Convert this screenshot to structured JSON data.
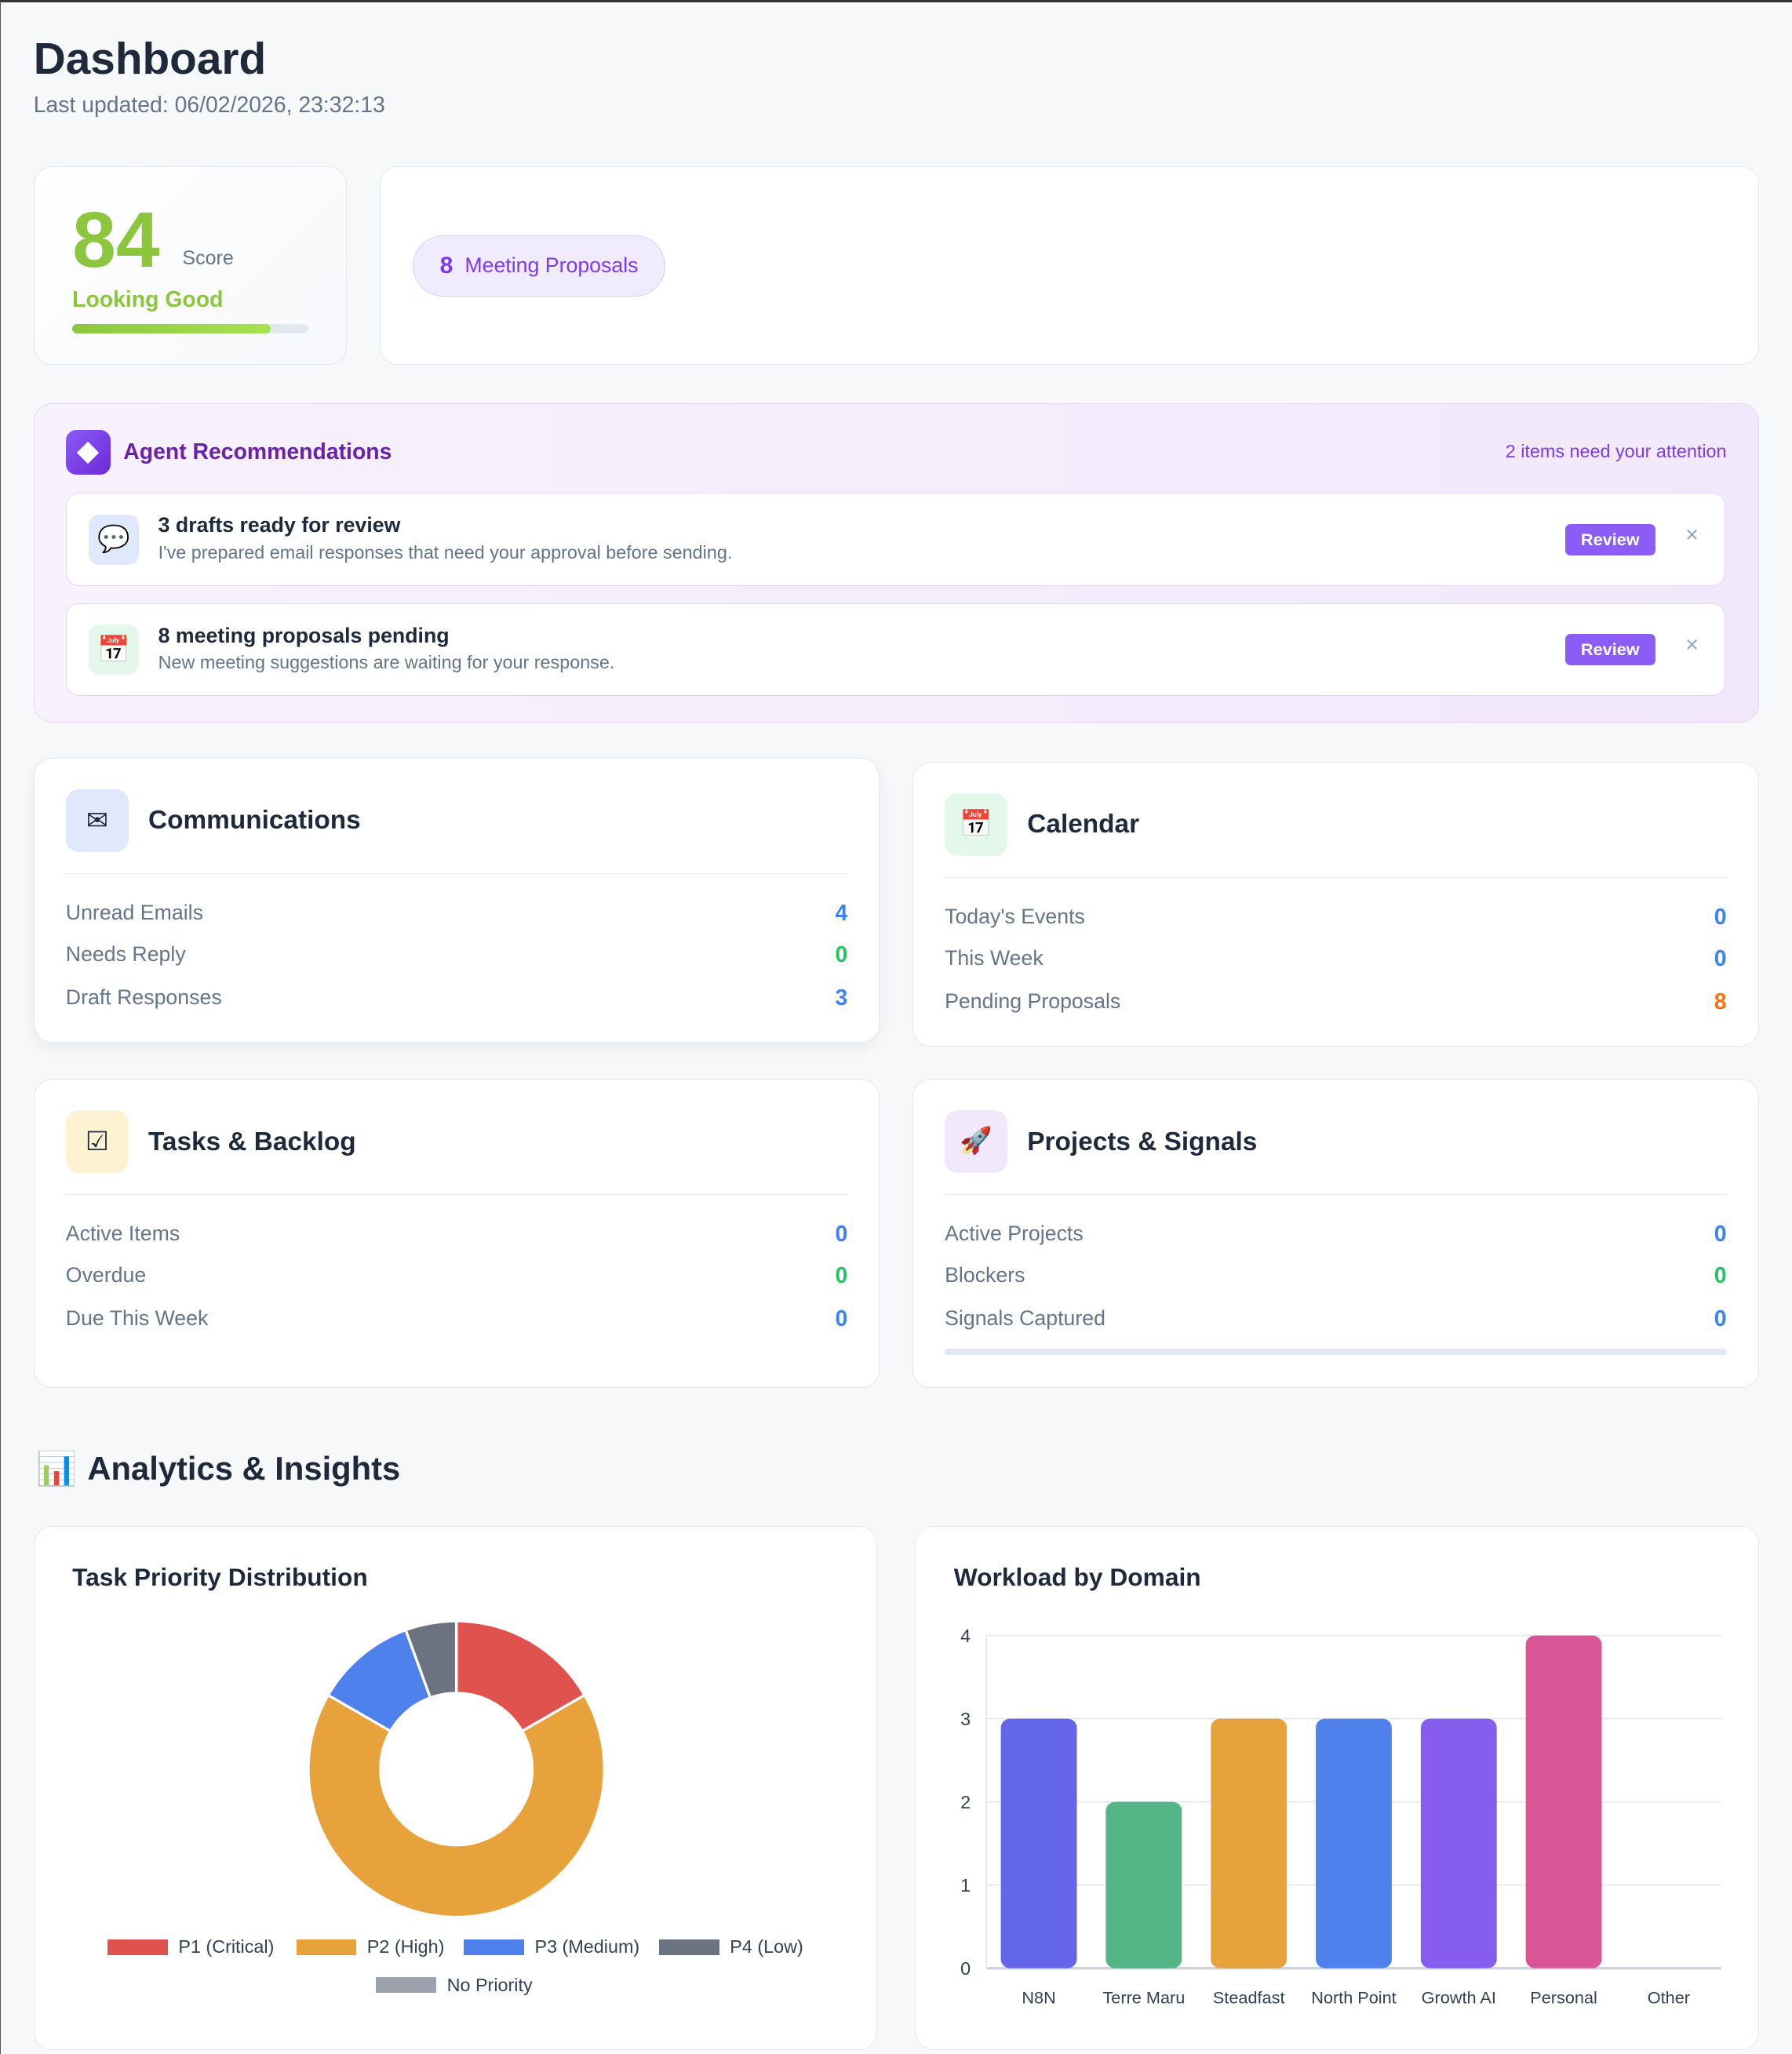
{
  "header": {
    "title": "Dashboard",
    "last_updated": "Last updated: 06/02/2026, 23:32:13"
  },
  "score": {
    "value": "84",
    "label": "Score",
    "status": "Looking Good",
    "progress_pct": 84
  },
  "meeting_pill": {
    "count": "8",
    "label": "Meeting Proposals"
  },
  "agent": {
    "title": "Agent Recommendations",
    "note": "2 items need your attention",
    "items": [
      {
        "icon": "speech-bubble-icon",
        "glyph": "💬",
        "title": "3 drafts ready for review",
        "desc": "I've prepared email responses that need your approval before sending.",
        "button": "Review",
        "close": "×"
      },
      {
        "icon": "calendar-icon",
        "glyph": "📅",
        "title": "8 meeting proposals pending",
        "desc": "New meeting suggestions are waiting for your response.",
        "button": "Review",
        "close": "×"
      }
    ]
  },
  "sections": [
    {
      "title": "Communications",
      "icon": "envelope-icon",
      "glyph": "✉",
      "rows": [
        {
          "label": "Unread Emails",
          "value": "4"
        },
        {
          "label": "Needs Reply",
          "value": "0"
        },
        {
          "label": "Draft Responses",
          "value": "3"
        }
      ]
    },
    {
      "title": "Calendar",
      "icon": "calendar-icon",
      "glyph": "📅",
      "rows": [
        {
          "label": "Today's Events",
          "value": "0"
        },
        {
          "label": "This Week",
          "value": "0"
        },
        {
          "label": "Pending Proposals",
          "value": "8"
        }
      ]
    },
    {
      "title": "Tasks & Backlog",
      "icon": "checkbox-icon",
      "glyph": "☑",
      "rows": [
        {
          "label": "Active Items",
          "value": "0"
        },
        {
          "label": "Overdue",
          "value": "0"
        },
        {
          "label": "Due This Week",
          "value": "0"
        }
      ]
    },
    {
      "title": "Projects & Signals",
      "icon": "rocket-icon",
      "glyph": "🚀",
      "rows": [
        {
          "label": "Active Projects",
          "value": "0"
        },
        {
          "label": "Blockers",
          "value": "0"
        },
        {
          "label": "Signals Captured",
          "value": "0"
        }
      ]
    }
  ],
  "analytics": {
    "title": "Analytics & Insights",
    "glyph": "📊"
  },
  "chart_data": [
    {
      "type": "pie",
      "title": "Task Priority Distribution",
      "categories": [
        "P1 (Critical)",
        "P2 (High)",
        "P3 (Medium)",
        "P4 (Low)",
        "No Priority"
      ],
      "values": [
        3,
        12,
        2,
        1,
        0
      ],
      "colors": [
        "#df524e",
        "#e8a23c",
        "#4f81ec",
        "#6b7280",
        "#9ca3af"
      ],
      "legend": "bottom"
    },
    {
      "type": "bar",
      "title": "Workload by Domain",
      "categories": [
        "N8N",
        "Terre Maru",
        "Steadfast",
        "North Point",
        "Growth AI",
        "Personal",
        "Other"
      ],
      "values": [
        3,
        2,
        3,
        3,
        3,
        4,
        0
      ],
      "colors": [
        "#6366e8",
        "#54b686",
        "#e8a23c",
        "#4f81ec",
        "#865ded",
        "#da5596",
        "#999999"
      ],
      "ylim": [
        0,
        4
      ],
      "yticks": [
        "0",
        "1",
        "2",
        "3",
        "4"
      ],
      "grid": true
    }
  ]
}
